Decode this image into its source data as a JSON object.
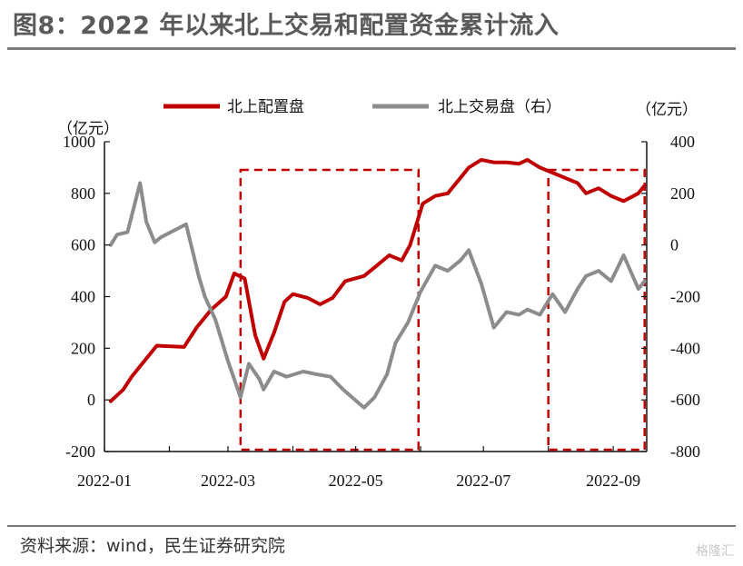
{
  "title": "图8：2022 年以来北上交易和配置资金累计流入",
  "source": "资料来源：wind，民生证券研究院",
  "watermark": "格隆汇",
  "chart_data": {
    "type": "line",
    "x_ticks": [
      "2022-01",
      "2022-03",
      "2022-05",
      "2022-07",
      "2022-09"
    ],
    "left_axis": {
      "unit": "（亿元）",
      "range": [
        -200,
        1000
      ],
      "ticks": [
        1000,
        800,
        600,
        400,
        200,
        0,
        -200
      ]
    },
    "right_axis": {
      "unit": "（亿元）",
      "range": [
        -800,
        400
      ],
      "ticks": [
        400,
        200,
        0,
        -200,
        -400,
        -600,
        -800
      ]
    },
    "legend_position": "top",
    "grid": false,
    "series": [
      {
        "name": "北上配置盘",
        "axis": "left",
        "color": "#c00000",
        "x": [
          "2022-01-04",
          "2022-01-10",
          "2022-01-14",
          "2022-01-20",
          "2022-01-26",
          "2022-02-08",
          "2022-02-14",
          "2022-02-21",
          "2022-02-28",
          "2022-03-04",
          "2022-03-09",
          "2022-03-14",
          "2022-03-18",
          "2022-03-23",
          "2022-03-28",
          "2022-04-01",
          "2022-04-08",
          "2022-04-14",
          "2022-04-20",
          "2022-04-26",
          "2022-05-05",
          "2022-05-11",
          "2022-05-17",
          "2022-05-23",
          "2022-05-27",
          "2022-06-02",
          "2022-06-08",
          "2022-06-14",
          "2022-06-20",
          "2022-06-24",
          "2022-06-30",
          "2022-07-06",
          "2022-07-12",
          "2022-07-18",
          "2022-07-22",
          "2022-07-28",
          "2022-08-03",
          "2022-08-09",
          "2022-08-15",
          "2022-08-19",
          "2022-08-25",
          "2022-08-31",
          "2022-09-06",
          "2022-09-13",
          "2022-09-16"
        ],
        "values": [
          -5,
          40,
          90,
          150,
          210,
          205,
          280,
          350,
          400,
          490,
          470,
          250,
          160,
          260,
          380,
          410,
          395,
          370,
          395,
          460,
          480,
          520,
          560,
          540,
          600,
          760,
          790,
          800,
          860,
          900,
          930,
          920,
          920,
          915,
          930,
          900,
          880,
          860,
          840,
          800,
          820,
          790,
          770,
          800,
          830
        ]
      },
      {
        "name": "北上交易盘（右）",
        "axis": "right",
        "color": "#8c8c8c",
        "x": [
          "2022-01-04",
          "2022-01-07",
          "2022-01-12",
          "2022-01-18",
          "2022-01-21",
          "2022-01-25",
          "2022-01-28",
          "2022-02-09",
          "2022-02-15",
          "2022-02-18",
          "2022-02-23",
          "2022-03-01",
          "2022-03-07",
          "2022-03-11",
          "2022-03-16",
          "2022-03-18",
          "2022-03-23",
          "2022-03-29",
          "2022-04-06",
          "2022-04-12",
          "2022-04-19",
          "2022-04-25",
          "2022-05-05",
          "2022-05-10",
          "2022-05-16",
          "2022-05-20",
          "2022-05-26",
          "2022-06-01",
          "2022-06-08",
          "2022-06-14",
          "2022-06-20",
          "2022-06-24",
          "2022-06-30",
          "2022-07-06",
          "2022-07-12",
          "2022-07-18",
          "2022-07-22",
          "2022-07-28",
          "2022-08-03",
          "2022-08-09",
          "2022-08-15",
          "2022-08-19",
          "2022-08-25",
          "2022-08-31",
          "2022-09-06",
          "2022-09-13",
          "2022-09-16"
        ],
        "values": [
          0,
          40,
          50,
          240,
          90,
          10,
          30,
          80,
          -120,
          -200,
          -290,
          -450,
          -590,
          -460,
          -520,
          -560,
          -490,
          -510,
          -490,
          -500,
          -510,
          -560,
          -630,
          -590,
          -500,
          -380,
          -300,
          -180,
          -80,
          -100,
          -60,
          -20,
          -150,
          -320,
          -260,
          -270,
          -250,
          -270,
          -190,
          -260,
          -170,
          -120,
          -100,
          -140,
          -40,
          -170,
          -140
        ]
      }
    ],
    "annotations": [
      {
        "type": "dashed-box",
        "x_start": "2022-03-07",
        "x_end": "2022-05-31",
        "color": "#c00000"
      },
      {
        "type": "dashed-box",
        "x_start": "2022-08-01",
        "x_end": "2022-09-16",
        "color": "#c00000"
      }
    ]
  }
}
